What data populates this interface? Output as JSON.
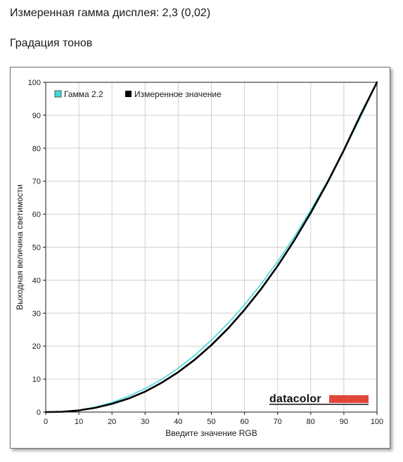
{
  "header": {
    "measured_gamma": "Измеренная гамма дисплея: 2,3 (0,02)",
    "section_title": "Градация тонов"
  },
  "chart_data": {
    "type": "line",
    "title": "",
    "xlabel": "Введите значение RGB",
    "ylabel": "Выходная величина светимости",
    "xlim": [
      0,
      100
    ],
    "ylim": [
      0,
      100
    ],
    "x_ticks": [
      0,
      10,
      20,
      30,
      40,
      50,
      60,
      70,
      80,
      90,
      100
    ],
    "y_ticks": [
      0,
      10,
      20,
      30,
      40,
      50,
      60,
      70,
      80,
      90,
      100
    ],
    "grid": true,
    "legend_position": "top-left",
    "x": [
      0,
      5,
      10,
      15,
      20,
      25,
      30,
      35,
      40,
      45,
      50,
      55,
      60,
      65,
      70,
      75,
      80,
      85,
      90,
      95,
      100
    ],
    "series": [
      {
        "name": "Гамма 2.2",
        "color": "#3fd9dc",
        "values": [
          0,
          0.1,
          0.6,
          1.5,
          2.9,
          4.8,
          7.1,
          9.9,
          13.3,
          17.2,
          21.8,
          26.9,
          32.5,
          38.8,
          45.6,
          53.1,
          61.2,
          69.9,
          79.3,
          89.3,
          100
        ]
      },
      {
        "name": "Измеренное значение",
        "color": "#000000",
        "values": [
          0,
          0.1,
          0.5,
          1.3,
          2.5,
          4.1,
          6.2,
          8.9,
          12.1,
          15.9,
          20.3,
          25.3,
          31.0,
          37.3,
          44.3,
          52.0,
          60.4,
          69.5,
          79.4,
          90.0,
          100
        ]
      }
    ]
  },
  "branding": {
    "logo_text": "datacolor",
    "logo_bar_color": "#e2453a"
  }
}
